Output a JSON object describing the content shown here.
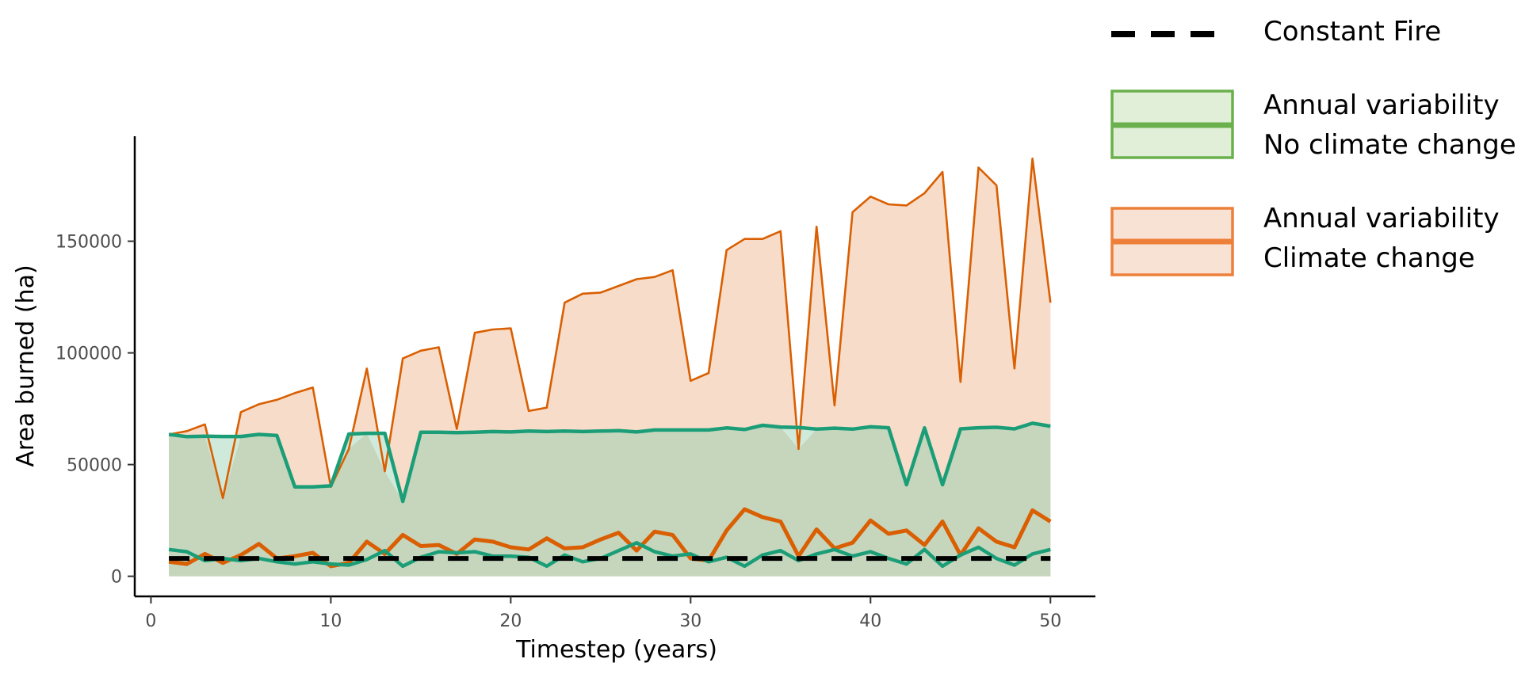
{
  "chart_data": {
    "type": "area",
    "xlabel": "Timestep (years)",
    "ylabel": "Area burned (ha)",
    "xlim": [
      -0.9,
      52.5
    ],
    "ylim": [
      -9000,
      197000
    ],
    "x_ticks": [
      0,
      10,
      20,
      30,
      40,
      50
    ],
    "y_ticks": [
      0,
      50000,
      100000,
      150000
    ],
    "x": [
      1,
      2,
      3,
      4,
      5,
      6,
      7,
      8,
      9,
      10,
      11,
      12,
      13,
      14,
      15,
      16,
      17,
      18,
      19,
      20,
      21,
      22,
      23,
      24,
      25,
      26,
      27,
      28,
      29,
      30,
      31,
      32,
      33,
      34,
      35,
      36,
      37,
      38,
      39,
      40,
      41,
      42,
      43,
      44,
      45,
      46,
      47,
      48,
      49,
      50
    ],
    "grid": false,
    "legend_position": "right",
    "legend": [
      {
        "key": "constant",
        "lines": [
          "Constant Fire"
        ]
      },
      {
        "key": "nocc",
        "lines": [
          "Annual variability",
          "No climate change"
        ]
      },
      {
        "key": "cc",
        "lines": [
          "Annual variability",
          "Climate change"
        ]
      }
    ],
    "colors": {
      "cc_line": "#d95f02",
      "cc_fill": "#f7dcc9",
      "cc_legend_border": "#ee7f39",
      "cc_legend_fill": "#f8e2d4",
      "nocc_line": "#1b9e77",
      "nocc_fill": "#c6d6bd",
      "nocc_top_fill": "#cfeadb",
      "nocc_legend_border": "#6ab04c",
      "nocc_legend_fill": "#e1efd8",
      "constant_line": "#000000"
    },
    "series": [
      {
        "name": "Constant Fire",
        "key": "constant",
        "style": "dashed",
        "values": [
          8000,
          8000,
          8000,
          8000,
          8000,
          8000,
          8000,
          8000,
          8000,
          8000,
          8000,
          8000,
          8000,
          8000,
          8000,
          8000,
          8000,
          8000,
          8000,
          8000,
          8000,
          8000,
          8000,
          8000,
          8000,
          8000,
          8000,
          8000,
          8000,
          8000,
          8000,
          8000,
          8000,
          8000,
          8000,
          8000,
          8000,
          8000,
          8000,
          8000,
          8000,
          8000,
          8000,
          8000,
          8000,
          8000,
          8000,
          8000,
          8000,
          8000
        ]
      },
      {
        "key": "nocc_upper",
        "values": [
          63500,
          62500,
          62700,
          62600,
          62600,
          63500,
          63000,
          40000,
          40000,
          40500,
          63700,
          64000,
          64000,
          33500,
          64500,
          64500,
          64300,
          64500,
          64800,
          64600,
          65000,
          64800,
          65000,
          64800,
          65000,
          65200,
          64600,
          65500,
          65500,
          65500,
          65500,
          66400,
          65700,
          67600,
          66800,
          66600,
          65900,
          66300,
          65900,
          66900,
          66500,
          41000,
          66400,
          41000,
          66000,
          66500,
          66700,
          66000,
          68500,
          67200
        ]
      },
      {
        "key": "nocc_lower",
        "values": [
          12000,
          11000,
          7000,
          8000,
          7000,
          8000,
          6500,
          5500,
          6500,
          5500,
          5000,
          7500,
          11500,
          4500,
          8500,
          11000,
          10500,
          11000,
          9000,
          9000,
          8500,
          4500,
          9500,
          6500,
          8000,
          11500,
          15000,
          11000,
          9000,
          10000,
          6500,
          8500,
          4500,
          9500,
          11500,
          7000,
          10000,
          12000,
          9000,
          11000,
          8000,
          5500,
          12000,
          4500,
          9500,
          13000,
          8000,
          5000,
          10000,
          12000
        ]
      },
      {
        "key": "cc_upper",
        "values": [
          63500,
          65000,
          68000,
          35000,
          73500,
          77000,
          79000,
          82000,
          84500,
          40000,
          57000,
          93000,
          47000,
          97500,
          101000,
          102500,
          66000,
          109000,
          110500,
          111000,
          74000,
          75500,
          122500,
          126500,
          127000,
          130000,
          133000,
          134000,
          137000,
          87500,
          91000,
          146000,
          151000,
          151000,
          154500,
          57000,
          156500,
          76500,
          163000,
          170000,
          166500,
          166000,
          171500,
          181000,
          87000,
          183000,
          175000,
          93000,
          187000,
          122500
        ]
      },
      {
        "key": "cc_lower",
        "values": [
          6500,
          5500,
          10000,
          6000,
          9500,
          14500,
          8000,
          9000,
          10500,
          4500,
          6000,
          15500,
          10000,
          18500,
          13500,
          14000,
          10000,
          16500,
          15500,
          13000,
          12000,
          17000,
          12500,
          13000,
          16500,
          19500,
          11500,
          20000,
          18500,
          8000,
          7000,
          20500,
          30000,
          26500,
          24500,
          9000,
          21000,
          12500,
          15000,
          25000,
          19000,
          20500,
          14000,
          24500,
          9500,
          21500,
          15500,
          13000,
          29500,
          24500
        ]
      }
    ]
  }
}
